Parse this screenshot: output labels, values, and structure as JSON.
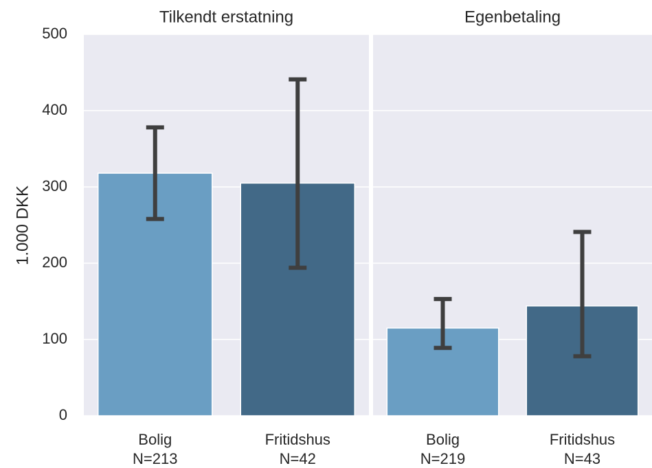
{
  "chart_data": {
    "type": "bar",
    "ylabel": "1.000 DKK",
    "ylim": [
      0,
      500
    ],
    "yticks": [
      "0",
      "100",
      "200",
      "300",
      "400",
      "500"
    ],
    "grid": true,
    "colors": {
      "Bolig": "#6a9ec3",
      "Fritidshus": "#426987",
      "errorbar": "#3f3f3f",
      "panel_background": "#eaeaf2"
    },
    "panels": [
      {
        "title": "Tilkendt erstatning",
        "categories": [
          {
            "label": "Bolig",
            "n": "N=213",
            "value": 318,
            "ci": [
              258,
              378
            ]
          },
          {
            "label": "Fritidshus",
            "n": "N=42",
            "value": 305,
            "ci": [
              194,
              441
            ]
          }
        ]
      },
      {
        "title": "Egenbetaling",
        "categories": [
          {
            "label": "Bolig",
            "n": "N=219",
            "value": 115,
            "ci": [
              89,
              153
            ]
          },
          {
            "label": "Fritidshus",
            "n": "N=43",
            "value": 144,
            "ci": [
              78,
              241
            ]
          }
        ]
      }
    ]
  }
}
